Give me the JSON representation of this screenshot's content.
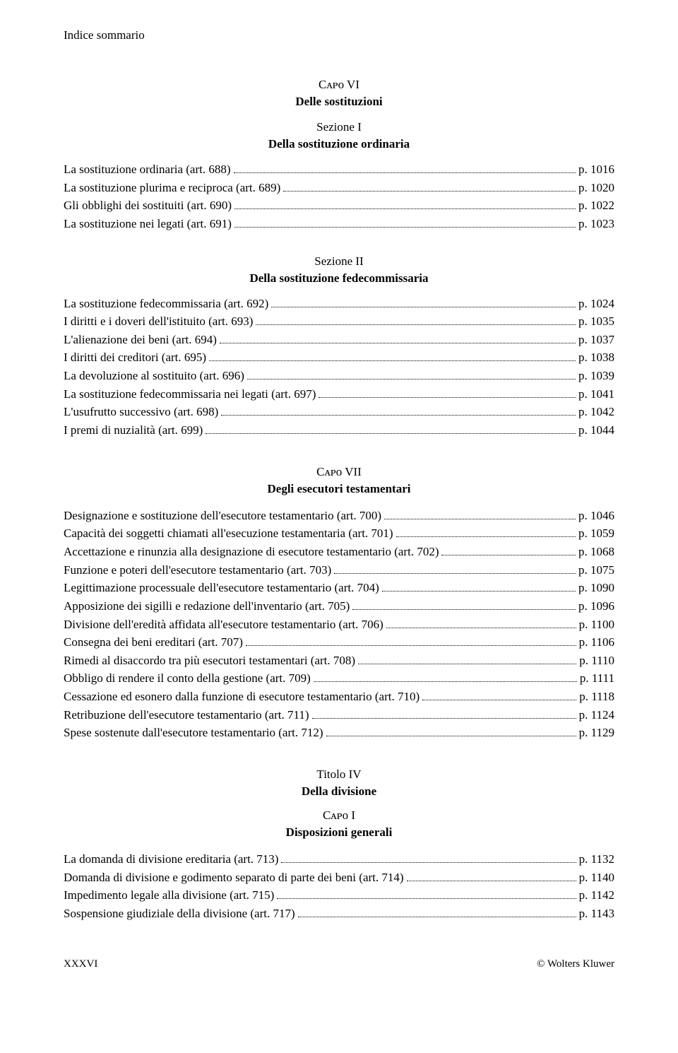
{
  "header": "Indice sommario",
  "capo6": {
    "label": "Cᴀᴘᴏ VI",
    "title": "Delle sostituzioni",
    "sezione1": {
      "label": "Sezione I",
      "title": "Della sostituzione ordinaria",
      "entries": [
        {
          "label": "La sostituzione ordinaria (art. 688)",
          "page": "p. 1016"
        },
        {
          "label": "La sostituzione plurima e reciproca (art. 689)",
          "page": "p. 1020"
        },
        {
          "label": "Gli obblighi dei sostituiti (art. 690)",
          "page": "p. 1022"
        },
        {
          "label": "La sostituzione nei legati (art. 691)",
          "page": "p. 1023"
        }
      ]
    },
    "sezione2": {
      "label": "Sezione II",
      "title": "Della sostituzione fedecommissaria",
      "entries": [
        {
          "label": "La sostituzione fedecommissaria (art. 692)",
          "page": "p. 1024"
        },
        {
          "label": "I diritti e i doveri dell'istituito (art. 693)",
          "page": "p. 1035"
        },
        {
          "label": "L'alienazione dei beni (art. 694)",
          "page": "p. 1037"
        },
        {
          "label": "I diritti dei creditori (art. 695)",
          "page": "p. 1038"
        },
        {
          "label": "La devoluzione al sostituito (art. 696)",
          "page": "p. 1039"
        },
        {
          "label": "La sostituzione fedecommissaria nei legati (art. 697)",
          "page": "p. 1041"
        },
        {
          "label": "L'usufrutto successivo (art. 698)",
          "page": "p. 1042"
        },
        {
          "label": "I premi di nuzialità (art. 699)",
          "page": "p. 1044"
        }
      ]
    }
  },
  "capo7": {
    "label": "Cᴀᴘᴏ VII",
    "title": "Degli esecutori testamentari",
    "entries": [
      {
        "label": "Designazione e sostituzione dell'esecutore testamentario (art. 700)",
        "page": "p. 1046"
      },
      {
        "label": "Capacità dei soggetti chiamati all'esecuzione testamentaria (art. 701)",
        "page": "p. 1059"
      },
      {
        "label": "Accettazione e rinunzia alla designazione di esecutore testamentario (art. 702)",
        "page": "p. 1068"
      },
      {
        "label": "Funzione e poteri dell'esecutore testamentario (art. 703)",
        "page": "p. 1075"
      },
      {
        "label": "Legittimazione processuale dell'esecutore testamentario (art. 704)",
        "page": "p. 1090"
      },
      {
        "label": "Apposizione dei sigilli e redazione dell'inventario (art. 705)",
        "page": "p. 1096"
      },
      {
        "label": "Divisione dell'eredità affidata all'esecutore testamentario (art. 706)",
        "page": "p. 1100"
      },
      {
        "label": "Consegna dei beni ereditari (art. 707)",
        "page": "p. 1106"
      },
      {
        "label": "Rimedi al disaccordo tra più esecutori testamentari (art. 708)",
        "page": "p. 1110"
      },
      {
        "label": "Obbligo di rendere il conto della gestione (art. 709)",
        "page": "p. 1111"
      },
      {
        "label": "Cessazione ed esonero dalla funzione di esecutore testamentario (art. 710)",
        "page": "p. 1118"
      },
      {
        "label": "Retribuzione dell'esecutore testamentario (art. 711)",
        "page": "p. 1124"
      },
      {
        "label": "Spese sostenute dall'esecutore testamentario (art. 712)",
        "page": "p. 1129"
      }
    ]
  },
  "titolo4": {
    "label": "Titolo IV",
    "title": "Della divisione",
    "capo1": {
      "label": "Cᴀᴘᴏ I",
      "title": "Disposizioni generali",
      "entries": [
        {
          "label": "La domanda di divisione ereditaria (art. 713)",
          "page": "p. 1132"
        },
        {
          "label": "Domanda di divisione e godimento separato di parte dei beni (art. 714)",
          "page": "p. 1140"
        },
        {
          "label": "Impedimento legale alla divisione (art. 715)",
          "page": "p. 1142"
        },
        {
          "label": "Sospensione giudiziale della divisione (art. 717)",
          "page": "p. 1143"
        }
      ]
    }
  },
  "footer": {
    "left": "XXXVI",
    "right": "© Wolters Kluwer"
  }
}
